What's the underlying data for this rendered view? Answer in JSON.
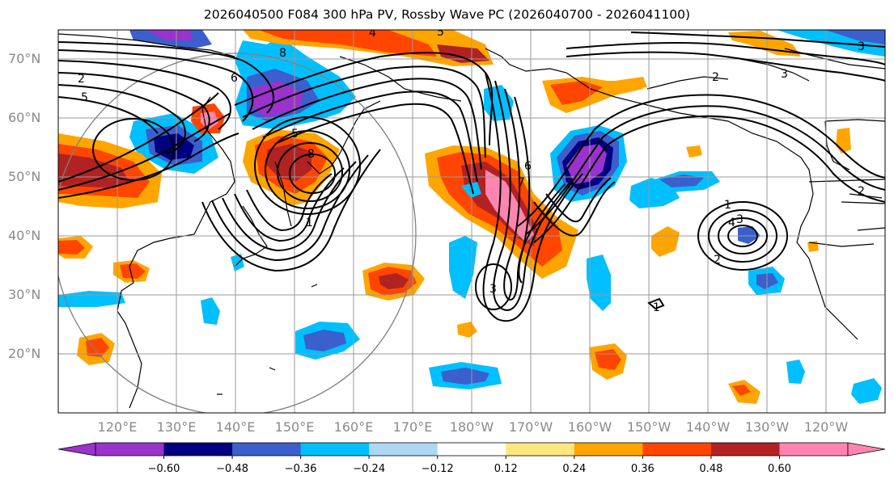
{
  "title": "2026040500 F084 300 hPa PV, Rossby Wave PC (2026040700 - 2026041100)",
  "lat_labels": [
    "70°N",
    "60°N",
    "50°N",
    "40°N",
    "30°N",
    "20°N"
  ],
  "lon_labels": [
    "120°E",
    "130°E",
    "140°E",
    "150°E",
    "160°E",
    "170°E",
    "180°W",
    "170°W",
    "160°W",
    "150°W",
    "140°W",
    "130°W",
    "120°W"
  ],
  "colorbar": {
    "colors": [
      "#9933cc",
      "#000080",
      "#3b5fcc",
      "#00bfff",
      "#add8f5",
      "#ffffff",
      "#ffe680",
      "#ffa500",
      "#ff4500",
      "#b22222",
      "#ff85b0"
    ],
    "under_color": "#9933cc",
    "over_color": "#ff85b0",
    "tick_labels": [
      "−0.60",
      "−0.48",
      "−0.36",
      "−0.24",
      "−0.12",
      "0.12",
      "0.24",
      "0.36",
      "0.48",
      "0.60"
    ]
  },
  "contour_labels": [
    "2",
    "5",
    "6",
    "8",
    "5",
    "8",
    "4",
    "5",
    "2",
    "3",
    "2",
    "3",
    "1",
    "3",
    "6",
    "7",
    "1",
    "4",
    "3",
    "2",
    "1"
  ]
}
